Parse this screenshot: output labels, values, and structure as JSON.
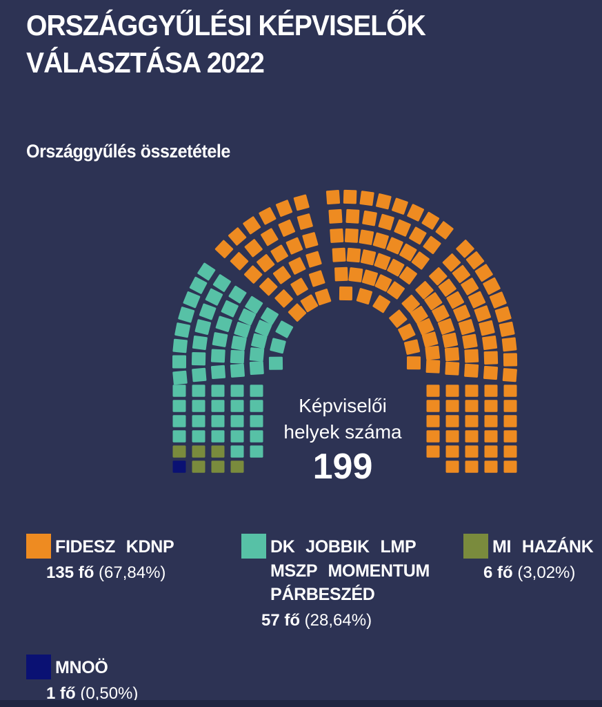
{
  "title": {
    "line1": "ORSZÁGGYŰLÉSI KÉPVISELŐK",
    "line2": "VÁLASZTÁSA 2022"
  },
  "subtitle": "Országgyűlés összetétele",
  "center_label": {
    "line1": "Képviselői",
    "line2": "helyek száma",
    "total": "199"
  },
  "colors": {
    "background": "#2d3354",
    "footer_bar": "#202642",
    "text": "#ffffff"
  },
  "chart_data": {
    "type": "parliament",
    "title": "Országgyűlés összetétele",
    "total_seats": 199,
    "legend_position": "bottom",
    "parties": [
      {
        "id": "fidesz",
        "name": "FIDESZ KDNP",
        "name_lines": [
          "FIDESZ KDNP"
        ],
        "seats": 135,
        "seats_label": "135 fő",
        "pct_label": "(67,84%)",
        "color": "#ee8b21"
      },
      {
        "id": "opposition",
        "name": "DK JOBBIK LMP MSZP MOMENTUM PÁRBESZÉD",
        "name_lines": [
          "DK JOBBIK LMP",
          "MSZP MOMENTUM",
          "PÁRBESZÉD"
        ],
        "seats": 57,
        "seats_label": "57 fő",
        "pct_label": "(28,64%)",
        "color": "#57c1a6"
      },
      {
        "id": "mihazank",
        "name": "MI HAZÁNK",
        "name_lines": [
          "MI HAZÁNK"
        ],
        "seats": 6,
        "seats_label": "6 fő",
        "pct_label": "(3,02%)",
        "color": "#7a8b3d"
      },
      {
        "id": "mnoo",
        "name": "MNOÖ",
        "name_lines": [
          "MNOÖ"
        ],
        "seats": 1,
        "seats_label": "1 fő",
        "pct_label": "(0,50%)",
        "color": "#0a1173"
      }
    ]
  }
}
